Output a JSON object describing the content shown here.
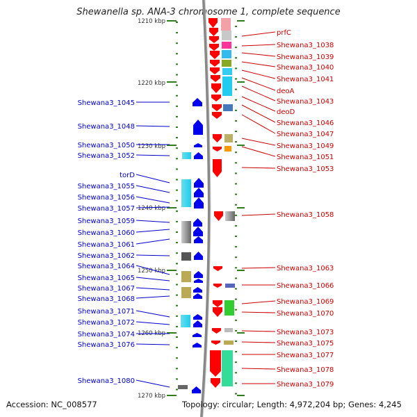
{
  "title": "Shewanella sp. ANA-3 chromosome 1, complete sequence",
  "footer": {
    "accession": "Accession: NC_008577",
    "topology": "Topology: circular; Length: 4,972,204 bp; Genes: 4,245"
  },
  "scale_labels": [
    "1210 kbp",
    "1220 kbp",
    "1230 kbp",
    "1240 kbp",
    "1250 kbp",
    "1260 kbp",
    "1270 kbp"
  ],
  "left_genes": [
    "Shewana3_1045",
    "Shewana3_1048",
    "Shewana3_1050",
    "Shewana3_1052",
    "torD",
    "Shewana3_1055",
    "Shewana3_1056",
    "Shewana3_1057",
    "Shewana3_1059",
    "Shewana3_1060",
    "Shewana3_1061",
    "Shewana3_1062",
    "Shewana3_1064",
    "Shewana3_1065",
    "Shewana3_1067",
    "Shewana3_1068",
    "Shewana3_1071",
    "Shewana3_1072",
    "Shewana3_1074",
    "Shewana3_1076",
    "Shewana3_1080"
  ],
  "right_genes": [
    "prfC",
    "Shewana3_1038",
    "Shewana3_1039",
    "Shewana3_1040",
    "Shewana3_1041",
    "deoA",
    "Shewana3_1043",
    "deoD",
    "Shewana3_1046",
    "Shewana3_1047",
    "Shewana3_1049",
    "Shewana3_1051",
    "Shewana3_1053",
    "Shewana3_1058",
    "Shewana3_1063",
    "Shewana3_1066",
    "Shewana3_1069",
    "Shewana3_1070",
    "Shewana3_1073",
    "Shewana3_1075",
    "Shewana3_1077",
    "Shewana3_1078",
    "Shewana3_1079"
  ],
  "colors": {
    "forward_strand": "#ff0000",
    "reverse_strand": "#0000ee",
    "left_label": "#0000cc",
    "right_label": "#cc0000",
    "tick": "#2e7d1a"
  }
}
